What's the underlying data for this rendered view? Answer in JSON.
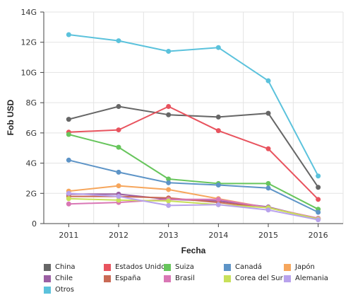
{
  "chart_data": {
    "type": "line",
    "title": "",
    "xlabel": "Fecha",
    "ylabel": "Fob USD",
    "categories": [
      "2011",
      "2012",
      "2013",
      "2014",
      "2015",
      "2016"
    ],
    "y_ticks": [
      "0",
      "2G",
      "4G",
      "6G",
      "8G",
      "10G",
      "12G",
      "14G"
    ],
    "ylim": [
      0,
      14
    ],
    "grid": true,
    "legend_position": "bottom",
    "series": [
      {
        "name": "China",
        "color": "#666666",
        "values": [
          6.9,
          7.75,
          7.2,
          7.05,
          7.3,
          2.4
        ]
      },
      {
        "name": "Estados Unidos",
        "color": "#e8535e",
        "values": [
          6.05,
          6.2,
          7.75,
          6.15,
          4.95,
          1.6
        ]
      },
      {
        "name": "Suiza",
        "color": "#67c55c",
        "values": [
          5.9,
          5.05,
          2.95,
          2.65,
          2.65,
          0.95
        ]
      },
      {
        "name": "Canadá",
        "color": "#5d94c7",
        "values": [
          4.2,
          3.4,
          2.7,
          2.55,
          2.35,
          0.75
        ]
      },
      {
        "name": "Japón",
        "color": "#f6a65c",
        "values": [
          2.15,
          2.5,
          2.25,
          1.65,
          1.05,
          0.35
        ]
      },
      {
        "name": "Chile",
        "color": "#9b5fa3",
        "values": [
          1.95,
          1.95,
          1.6,
          1.5,
          1.1,
          0.3
        ]
      },
      {
        "name": "España",
        "color": "#c96a55",
        "values": [
          1.8,
          1.8,
          1.7,
          1.4,
          1.05,
          0.3
        ]
      },
      {
        "name": "Brasil",
        "color": "#d977b5",
        "values": [
          1.3,
          1.4,
          1.6,
          1.6,
          1.05,
          0.35
        ]
      },
      {
        "name": "Corea del Sur",
        "color": "#c8e05a",
        "values": [
          1.65,
          1.55,
          1.5,
          1.25,
          1.05,
          0.3
        ]
      },
      {
        "name": "Alemania",
        "color": "#b8a2ec",
        "values": [
          2.0,
          1.8,
          1.2,
          1.25,
          0.9,
          0.25
        ]
      },
      {
        "name": "Otros",
        "color": "#5bc2dc",
        "values": [
          12.5,
          12.1,
          11.4,
          11.65,
          9.45,
          3.15
        ]
      }
    ]
  }
}
